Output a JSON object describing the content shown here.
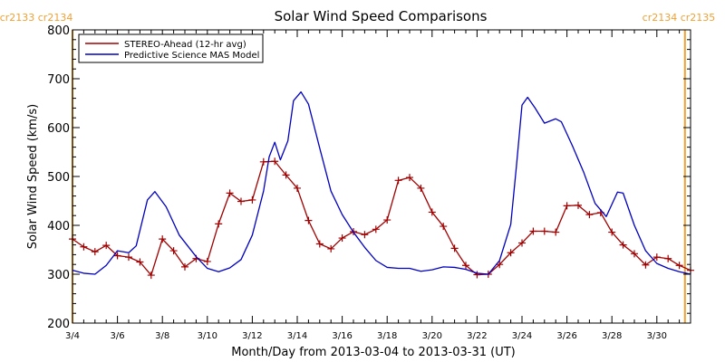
{
  "chart_data": {
    "type": "line",
    "title": "Solar Wind Speed Comparisons",
    "xlabel": "Month/Day from 2013-03-04 to 2013-03-31 (UT)",
    "ylabel": "Solar Wind Speed (km/s)",
    "xlim": [
      "2013-03-04T00:00",
      "2013-03-31T12:00"
    ],
    "ylim": [
      200,
      800
    ],
    "y_ticks": [
      200,
      300,
      400,
      500,
      600,
      700,
      800
    ],
    "x_tick_labels": [
      "3/4",
      "3/6",
      "3/8",
      "3/10",
      "3/12",
      "3/14",
      "3/16",
      "3/18",
      "3/20",
      "3/22",
      "3/24",
      "3/26",
      "3/28",
      "3/30"
    ],
    "legend": {
      "placement": "top-left"
    },
    "grid": false,
    "carrington_labels": {
      "left": "cr2133 cr2134",
      "right": "cr2134 cr2135"
    },
    "carrington_boundaries": [
      "2013-03-04T00:00",
      "2013-03-31T06:00"
    ],
    "colors": {
      "stereo": "#a00000",
      "mas": "#0000c0",
      "boundary": "#f0a030",
      "axis": "#000000"
    },
    "series": [
      {
        "name": "STEREO-Ahead (12-hr avg)",
        "style": "line-with-plus-markers",
        "points": [
          [
            "2013-03-04T00:00",
            372
          ],
          [
            "2013-03-04T12:00",
            356
          ],
          [
            "2013-03-05T00:00",
            346
          ],
          [
            "2013-03-05T12:00",
            359
          ],
          [
            "2013-03-06T00:00",
            338
          ],
          [
            "2013-03-06T12:00",
            335
          ],
          [
            "2013-03-07T00:00",
            325
          ],
          [
            "2013-03-07T12:00",
            298
          ],
          [
            "2013-03-08T00:00",
            372
          ],
          [
            "2013-03-08T12:00",
            348
          ],
          [
            "2013-03-09T00:00",
            315
          ],
          [
            "2013-03-09T12:00",
            332
          ],
          [
            "2013-03-10T00:00",
            326
          ],
          [
            "2013-03-10T12:00",
            403
          ],
          [
            "2013-03-11T00:00",
            466
          ],
          [
            "2013-03-11T12:00",
            449
          ],
          [
            "2013-03-12T00:00",
            452
          ],
          [
            "2013-03-12T12:00",
            530
          ],
          [
            "2013-03-13T00:00",
            531
          ],
          [
            "2013-03-13T12:00",
            503
          ],
          [
            "2013-03-14T00:00",
            476
          ],
          [
            "2013-03-14T12:00",
            410
          ],
          [
            "2013-03-15T00:00",
            362
          ],
          [
            "2013-03-15T12:00",
            352
          ],
          [
            "2013-03-16T00:00",
            374
          ],
          [
            "2013-03-16T12:00",
            387
          ],
          [
            "2013-03-17T00:00",
            381
          ],
          [
            "2013-03-17T12:00",
            392
          ],
          [
            "2013-03-18T00:00",
            411
          ],
          [
            "2013-03-18T12:00",
            492
          ],
          [
            "2013-03-19T00:00",
            498
          ],
          [
            "2013-03-19T12:00",
            476
          ],
          [
            "2013-03-20T00:00",
            427
          ],
          [
            "2013-03-20T12:00",
            398
          ],
          [
            "2013-03-21T00:00",
            353
          ],
          [
            "2013-03-21T12:00",
            318
          ],
          [
            "2013-03-22T00:00",
            299
          ],
          [
            "2013-03-22T12:00",
            300
          ],
          [
            "2013-03-23T00:00",
            320
          ],
          [
            "2013-03-23T12:00",
            344
          ],
          [
            "2013-03-24T00:00",
            364
          ],
          [
            "2013-03-24T12:00",
            388
          ],
          [
            "2013-03-25T00:00",
            388
          ],
          [
            "2013-03-25T12:00",
            386
          ],
          [
            "2013-03-26T00:00",
            440
          ],
          [
            "2013-03-26T12:00",
            441
          ],
          [
            "2013-03-27T00:00",
            422
          ],
          [
            "2013-03-27T12:00",
            426
          ],
          [
            "2013-03-28T00:00",
            386
          ],
          [
            "2013-03-28T12:00",
            360
          ],
          [
            "2013-03-29T00:00",
            342
          ],
          [
            "2013-03-29T12:00",
            319
          ],
          [
            "2013-03-30T00:00",
            335
          ],
          [
            "2013-03-30T12:00",
            332
          ],
          [
            "2013-03-31T00:00",
            318
          ],
          [
            "2013-03-31T12:00",
            308
          ]
        ]
      },
      {
        "name": "Predictive Science MAS Model",
        "style": "line",
        "points": [
          [
            "2013-03-04T00:00",
            308
          ],
          [
            "2013-03-04T12:00",
            302
          ],
          [
            "2013-03-05T00:00",
            300
          ],
          [
            "2013-03-05T12:00",
            318
          ],
          [
            "2013-03-06T00:00",
            348
          ],
          [
            "2013-03-06T12:00",
            344
          ],
          [
            "2013-03-06T20:00",
            358
          ],
          [
            "2013-03-07T08:00",
            452
          ],
          [
            "2013-03-07T16:00",
            469
          ],
          [
            "2013-03-08T04:00",
            438
          ],
          [
            "2013-03-08T18:00",
            380
          ],
          [
            "2013-03-09T12:00",
            336
          ],
          [
            "2013-03-10T00:00",
            312
          ],
          [
            "2013-03-10T12:00",
            305
          ],
          [
            "2013-03-11T00:00",
            313
          ],
          [
            "2013-03-11T12:00",
            330
          ],
          [
            "2013-03-12T00:00",
            380
          ],
          [
            "2013-03-12T12:00",
            470
          ],
          [
            "2013-03-12T18:00",
            540
          ],
          [
            "2013-03-13T00:00",
            570
          ],
          [
            "2013-03-13T06:00",
            534
          ],
          [
            "2013-03-13T14:00",
            573
          ],
          [
            "2013-03-13T20:00",
            655
          ],
          [
            "2013-03-14T04:00",
            673
          ],
          [
            "2013-03-14T12:00",
            648
          ],
          [
            "2013-03-15T00:00",
            558
          ],
          [
            "2013-03-15T12:00",
            470
          ],
          [
            "2013-03-16T00:00",
            422
          ],
          [
            "2013-03-16T12:00",
            386
          ],
          [
            "2013-03-17T00:00",
            355
          ],
          [
            "2013-03-17T12:00",
            328
          ],
          [
            "2013-03-18T00:00",
            314
          ],
          [
            "2013-03-18T12:00",
            312
          ],
          [
            "2013-03-19T00:00",
            312
          ],
          [
            "2013-03-19T12:00",
            306
          ],
          [
            "2013-03-20T00:00",
            309
          ],
          [
            "2013-03-20T12:00",
            315
          ],
          [
            "2013-03-21T00:00",
            314
          ],
          [
            "2013-03-21T12:00",
            310
          ],
          [
            "2013-03-22T00:00",
            302
          ],
          [
            "2013-03-22T12:00",
            300
          ],
          [
            "2013-03-23T00:00",
            328
          ],
          [
            "2013-03-23T12:00",
            402
          ],
          [
            "2013-03-23T18:00",
            520
          ],
          [
            "2013-03-24T00:00",
            646
          ],
          [
            "2013-03-24T06:00",
            662
          ],
          [
            "2013-03-24T14:00",
            640
          ],
          [
            "2013-03-25T00:00",
            609
          ],
          [
            "2013-03-25T12:00",
            618
          ],
          [
            "2013-03-25T18:00",
            612
          ],
          [
            "2013-03-26T06:00",
            562
          ],
          [
            "2013-03-26T18:00",
            508
          ],
          [
            "2013-03-27T06:00",
            445
          ],
          [
            "2013-03-27T18:00",
            418
          ],
          [
            "2013-03-28T06:00",
            468
          ],
          [
            "2013-03-28T12:00",
            466
          ],
          [
            "2013-03-29T00:00",
            400
          ],
          [
            "2013-03-29T12:00",
            348
          ],
          [
            "2013-03-30T00:00",
            322
          ],
          [
            "2013-03-30T12:00",
            312
          ],
          [
            "2013-03-31T00:00",
            305
          ],
          [
            "2013-03-31T12:00",
            300
          ]
        ]
      }
    ]
  }
}
